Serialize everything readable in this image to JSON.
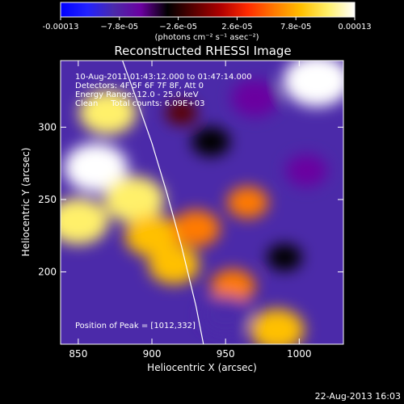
{
  "colorbar": {
    "tick_labels": [
      "-0.00013",
      "−7.8e-05",
      "−2.6e-05",
      "2.6e-05",
      "7.8e-05",
      "0.00013"
    ],
    "units_label": "(photons cm⁻² s⁻¹ asec⁻²)",
    "colors": [
      "#0000ff",
      "#2222ff",
      "#4b2aa9",
      "#6b00a0",
      "#000000",
      "#5a0000",
      "#b00000",
      "#ff2a00",
      "#ff7a00",
      "#ffc000",
      "#fff06a",
      "#ffffff"
    ]
  },
  "chart_data": {
    "type": "heatmap",
    "title": "Reconstructed RHESSI Image",
    "xlabel": "Heliocentric X (arcsec)",
    "ylabel": "Heliocentric Y (arcsec)",
    "xlim": [
      838,
      1030
    ],
    "ylim": [
      150,
      346
    ],
    "x_ticks": [
      850,
      900,
      950,
      1000
    ],
    "y_ticks": [
      200,
      250,
      300
    ],
    "annotations": [
      "10-Aug-2011 01:43:12.000 to 01:47:14.000",
      "Detectors: 4F 5F 6F 7F 8F, Att 0",
      "Energy Range: 12.0 - 25.0 keV",
      "Clean     Total counts: 6.09E+03"
    ],
    "peak_label": "Position of Peak = [1012,332]",
    "limb_curve": {
      "x": [
        880,
        890,
        900,
        910,
        920,
        930,
        935
      ],
      "y": [
        346,
        318,
        289,
        255,
        218,
        176,
        150
      ]
    },
    "features": [
      {
        "x": 850,
        "y": 235,
        "value": 0.00011
      },
      {
        "x": 862,
        "y": 272,
        "value": 0.00012
      },
      {
        "x": 870,
        "y": 310,
        "value": 0.0001
      },
      {
        "x": 888,
        "y": 250,
        "value": 0.00011
      },
      {
        "x": 900,
        "y": 225,
        "value": 9e-05
      },
      {
        "x": 915,
        "y": 205,
        "value": 8e-05
      },
      {
        "x": 930,
        "y": 230,
        "value": 7e-05
      },
      {
        "x": 955,
        "y": 190,
        "value": 6e-05
      },
      {
        "x": 985,
        "y": 160,
        "value": 9e-05
      },
      {
        "x": 1012,
        "y": 332,
        "value": 0.00013
      },
      {
        "x": 965,
        "y": 248,
        "value": 5e-05
      },
      {
        "x": 940,
        "y": 290,
        "value": -4e-05
      },
      {
        "x": 970,
        "y": 320,
        "value": -7e-05
      },
      {
        "x": 1005,
        "y": 270,
        "value": -5e-05
      },
      {
        "x": 950,
        "y": 170,
        "value": -8e-05
      },
      {
        "x": 990,
        "y": 210,
        "value": -3e-05
      },
      {
        "x": 920,
        "y": 310,
        "value": -2e-05
      }
    ]
  },
  "footer": {
    "date": "22-Aug-2013 16:03"
  }
}
